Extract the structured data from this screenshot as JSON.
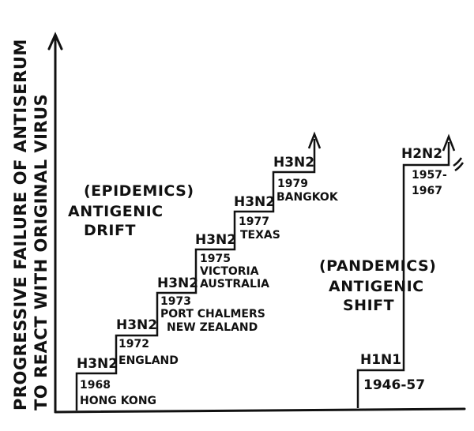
{
  "y_axis_label_line1": "PROGRESSIVE FAILURE OF ANTISERUM",
  "y_axis_label_line2": "TO REACT WITH ORIGINAL VIRUS",
  "drift": {
    "heading_line1": "(EPIDEMICS)",
    "heading_line2": "ANTIGENIC",
    "heading_line3": "DRIFT",
    "steps": [
      {
        "subtype": "H3N2",
        "year": "1968",
        "place": "HONG KONG"
      },
      {
        "subtype": "H3N2",
        "year": "1972",
        "place": "ENGLAND"
      },
      {
        "subtype": "H3N2",
        "year": "1973",
        "place_line1": "PORT CHALMERS",
        "place_line2": "NEW ZEALAND"
      },
      {
        "subtype": "H3N2",
        "year": "1975",
        "place_line1": "VICTORIA",
        "place_line2": "AUSTRALIA"
      },
      {
        "subtype": "H3N2",
        "year": "1977",
        "place": "TEXAS"
      },
      {
        "subtype": "H3N2",
        "year": "1979",
        "place": "BANGKOK"
      }
    ]
  },
  "shift": {
    "heading_line1": "(PANDEMICS)",
    "heading_line2": "ANTIGENIC",
    "heading_line3": "SHIFT",
    "steps": [
      {
        "subtype": "H1N1",
        "years": "1946-57"
      },
      {
        "subtype": "H2N2",
        "years_line1": "1957-",
        "years_line2": "1967"
      }
    ]
  },
  "colors": {
    "ink": "#111111",
    "paper": "#ffffff"
  }
}
